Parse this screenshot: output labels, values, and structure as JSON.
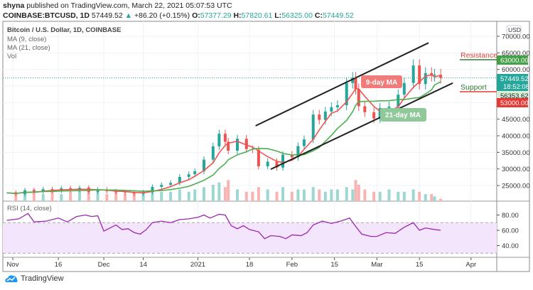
{
  "header": {
    "author": "shyna",
    "published": "published on TradingView.com, March 22, 2021 05:07:53 UTC",
    "symbol": "COINBASE:BTCUSD, 1D",
    "last": "57449.52",
    "change": "+86.20 (+0.15%)",
    "o_label": "O:",
    "o": "57377.29",
    "h_label": "H:",
    "h": "57820.61",
    "l_label": "L:",
    "l": "56325.00",
    "c_label": "C:",
    "c": "57449.52"
  },
  "legend": {
    "title": "Bitcoin / U.S. Dollar, 1D, COINBASE",
    "ma9": "MA (9, close)",
    "ma21": "MA (21, close)",
    "vol": "Vol",
    "rsi": "RSI (14, close)"
  },
  "branding": "TradingView",
  "colors": {
    "up": "#26a69a",
    "down": "#ef5350",
    "ma9": "#f05350",
    "ma21": "#4caf50",
    "rsi": "#9c27b0",
    "resistance": "#e53935",
    "support": "#2e7d32"
  },
  "chart_data": {
    "type": "candlestick",
    "currency": "USD",
    "y_ticks": [
      "70000.00",
      "65000.00",
      "60000.00",
      "45000.00",
      "40000.00",
      "35000.00",
      "30000.00",
      "25000.00"
    ],
    "ylim": [
      20000,
      72000
    ],
    "x_ticks": [
      {
        "date": "2020-11-01",
        "label": "Nov"
      },
      {
        "date": "2020-11-16",
        "label": "16"
      },
      {
        "date": "2020-12-01",
        "label": "Dec"
      },
      {
        "date": "2020-12-14",
        "label": "14"
      },
      {
        "date": "2021-01-01",
        "label": "2021"
      },
      {
        "date": "2021-01-18",
        "label": "18"
      },
      {
        "date": "2021-02-01",
        "label": "Feb"
      },
      {
        "date": "2021-02-15",
        "label": "15"
      },
      {
        "date": "2021-03-01",
        "label": "Mar"
      },
      {
        "date": "2021-03-15",
        "label": "15"
      },
      {
        "date": "2021-04-01",
        "label": "Apr"
      }
    ],
    "price": [
      [
        "2020-10-30",
        22800
      ],
      [
        "2020-11-02",
        22400
      ],
      [
        "2020-11-05",
        23600
      ],
      [
        "2020-11-08",
        23200
      ],
      [
        "2020-11-11",
        23900
      ],
      [
        "2020-11-14",
        23400
      ],
      [
        "2020-11-17",
        24200
      ],
      [
        "2020-11-20",
        23700
      ],
      [
        "2020-11-23",
        24300
      ],
      [
        "2020-11-26",
        23100
      ],
      [
        "2020-11-29",
        23800
      ],
      [
        "2020-12-02",
        23300
      ],
      [
        "2020-12-05",
        23000
      ],
      [
        "2020-12-08",
        22800
      ],
      [
        "2020-12-11",
        22500
      ],
      [
        "2020-12-14",
        23000
      ],
      [
        "2020-12-17",
        24600
      ],
      [
        "2020-12-20",
        25200
      ],
      [
        "2020-12-23",
        25800
      ],
      [
        "2020-12-26",
        27600
      ],
      [
        "2020-12-29",
        28400
      ],
      [
        "2020-12-31",
        29300
      ],
      [
        "2021-01-03",
        32800
      ],
      [
        "2021-01-06",
        36800
      ],
      [
        "2021-01-08",
        40600
      ],
      [
        "2021-01-10",
        38200
      ],
      [
        "2021-01-11",
        35500
      ],
      [
        "2021-01-14",
        39100
      ],
      [
        "2021-01-17",
        36000
      ],
      [
        "2021-01-19",
        35800
      ],
      [
        "2021-01-21",
        30800
      ],
      [
        "2021-01-24",
        32200
      ],
      [
        "2021-01-27",
        30400
      ],
      [
        "2021-01-29",
        34300
      ],
      [
        "2021-02-01",
        33500
      ],
      [
        "2021-02-03",
        36900
      ],
      [
        "2021-02-05",
        38900
      ],
      [
        "2021-02-08",
        46400
      ],
      [
        "2021-02-10",
        44800
      ],
      [
        "2021-02-12",
        47300
      ],
      [
        "2021-02-14",
        48600
      ],
      [
        "2021-02-16",
        49200
      ],
      [
        "2021-02-19",
        55900
      ],
      [
        "2021-02-21",
        57500
      ],
      [
        "2021-02-22",
        54100
      ],
      [
        "2021-02-23",
        48900
      ],
      [
        "2021-02-25",
        47100
      ],
      [
        "2021-02-28",
        45200
      ],
      [
        "2021-03-02",
        48400
      ],
      [
        "2021-03-05",
        48800
      ],
      [
        "2021-03-08",
        52400
      ],
      [
        "2021-03-10",
        55900
      ],
      [
        "2021-03-13",
        61200
      ],
      [
        "2021-03-15",
        55600
      ],
      [
        "2021-03-17",
        58900
      ],
      [
        "2021-03-19",
        58100
      ],
      [
        "2021-03-20",
        58400
      ],
      [
        "2021-03-22",
        57449.52
      ]
    ],
    "volume": [
      3,
      4,
      3,
      5,
      3,
      4,
      3,
      4,
      5,
      6,
      4,
      3,
      4,
      3,
      3,
      4,
      5,
      4,
      4,
      5,
      4,
      5,
      6,
      7,
      8,
      6,
      9,
      5,
      4,
      4,
      6,
      5,
      4,
      6,
      4,
      5,
      5,
      6,
      5,
      4,
      5,
      5,
      6,
      5,
      9,
      7,
      5,
      4,
      4,
      5,
      4,
      4,
      5,
      4,
      3,
      3,
      2,
      1
    ],
    "rsi": [
      [
        "2020-10-30",
        73
      ],
      [
        "2020-11-03",
        75
      ],
      [
        "2020-11-06",
        82
      ],
      [
        "2020-11-08",
        71
      ],
      [
        "2020-11-12",
        72
      ],
      [
        "2020-11-16",
        76
      ],
      [
        "2020-11-19",
        71
      ],
      [
        "2020-11-22",
        78
      ],
      [
        "2020-11-25",
        80
      ],
      [
        "2020-11-27",
        78
      ],
      [
        "2020-11-29",
        79
      ],
      [
        "2020-12-01",
        59
      ],
      [
        "2020-12-03",
        63
      ],
      [
        "2020-12-05",
        67
      ],
      [
        "2020-12-07",
        61
      ],
      [
        "2020-12-09",
        62
      ],
      [
        "2020-12-11",
        57
      ],
      [
        "2020-12-13",
        55
      ],
      [
        "2020-12-15",
        61
      ],
      [
        "2020-12-17",
        70
      ],
      [
        "2020-12-20",
        72
      ],
      [
        "2020-12-23",
        70
      ],
      [
        "2020-12-26",
        74
      ],
      [
        "2020-12-29",
        75
      ],
      [
        "2021-01-01",
        77
      ],
      [
        "2021-01-03",
        80
      ],
      [
        "2021-01-05",
        76
      ],
      [
        "2021-01-08",
        81
      ],
      [
        "2021-01-10",
        80
      ],
      [
        "2021-01-12",
        66
      ],
      [
        "2021-01-14",
        62
      ],
      [
        "2021-01-16",
        66
      ],
      [
        "2021-01-18",
        61
      ],
      [
        "2021-01-21",
        58
      ],
      [
        "2021-01-23",
        49
      ],
      [
        "2021-01-25",
        53
      ],
      [
        "2021-01-28",
        52
      ],
      [
        "2021-01-30",
        49
      ],
      [
        "2021-02-01",
        54
      ],
      [
        "2021-02-04",
        53
      ],
      [
        "2021-02-06",
        57
      ],
      [
        "2021-02-08",
        67
      ],
      [
        "2021-02-11",
        72
      ],
      [
        "2021-02-14",
        69
      ],
      [
        "2021-02-17",
        72
      ],
      [
        "2021-02-20",
        76
      ],
      [
        "2021-02-22",
        65
      ],
      [
        "2021-02-24",
        55
      ],
      [
        "2021-02-27",
        52
      ],
      [
        "2021-03-01",
        52
      ],
      [
        "2021-03-04",
        57
      ],
      [
        "2021-03-07",
        56
      ],
      [
        "2021-03-10",
        64
      ],
      [
        "2021-03-13",
        70
      ],
      [
        "2021-03-15",
        60
      ],
      [
        "2021-03-17",
        63
      ],
      [
        "2021-03-20",
        61
      ],
      [
        "2021-03-22",
        60
      ]
    ],
    "rsi_ticks": [
      "80.00",
      "60.00",
      "40.00"
    ],
    "rsi_bands": [
      70,
      30
    ],
    "trendlines": [
      {
        "from": [
          "2021-01-20",
          43000
        ],
        "to": [
          "2021-03-18",
          68000
        ]
      },
      {
        "from": [
          "2021-01-25",
          29900
        ],
        "to": [
          "2021-03-26",
          55900
        ]
      }
    ],
    "annotations": {
      "ma9": "9-day MA",
      "ma21": "21-day MA",
      "resistance": "Resistance",
      "support": "Support"
    },
    "price_labels": {
      "resistance": "63000.00",
      "last": "57449.52",
      "countdown": "18:52:08",
      "ma": "56353.62",
      "support": "53000.00"
    }
  }
}
